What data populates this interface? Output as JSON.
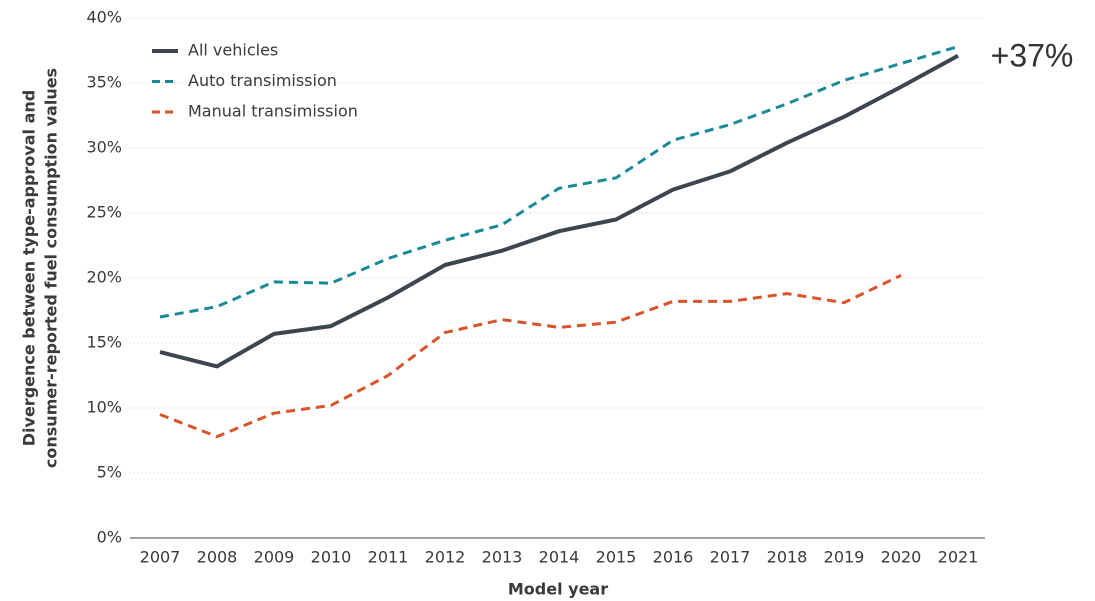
{
  "chart_data": {
    "type": "line",
    "ylabel": [
      "Divergence between type-approval and",
      "consumer-reported fuel consumption values"
    ],
    "xlabel": "Model year",
    "annotation": "+37%",
    "categories": [
      "2007",
      "2008",
      "2009",
      "2010",
      "2011",
      "2012",
      "2013",
      "2014",
      "2015",
      "2016",
      "2017",
      "2018",
      "2019",
      "2020",
      "2021"
    ],
    "series": [
      {
        "name": "All vehicles",
        "color": "#3d4551",
        "dashed": false,
        "values": [
          14.3,
          13.2,
          15.7,
          16.3,
          18.5,
          21.0,
          22.1,
          23.6,
          24.5,
          26.8,
          28.2,
          30.4,
          32.4,
          34.7,
          37.1
        ]
      },
      {
        "name": "Auto transimission",
        "color": "#1a8a99",
        "dashed": true,
        "values": [
          17.0,
          17.8,
          19.7,
          19.6,
          21.5,
          22.9,
          24.1,
          26.9,
          27.7,
          30.6,
          31.8,
          33.4,
          35.2,
          36.5,
          37.8
        ]
      },
      {
        "name": "Manual transimission",
        "color": "#d9532b",
        "dashed": true,
        "values": [
          9.5,
          7.8,
          9.6,
          10.2,
          12.5,
          15.8,
          16.8,
          16.2,
          16.6,
          18.2,
          18.2,
          18.8,
          18.1,
          20.2,
          null
        ]
      }
    ],
    "ylim": [
      0,
      40
    ],
    "yticks": [
      {
        "value": 0,
        "label": "0%"
      },
      {
        "value": 5,
        "label": "5%"
      },
      {
        "value": 10,
        "label": "10%"
      },
      {
        "value": 15,
        "label": "15%"
      },
      {
        "value": 20,
        "label": "20%"
      },
      {
        "value": 25,
        "label": "25%"
      },
      {
        "value": 30,
        "label": "30%"
      },
      {
        "value": 35,
        "label": "35%"
      },
      {
        "value": 40,
        "label": "40%"
      }
    ],
    "grid": true,
    "legend": "top-left"
  }
}
